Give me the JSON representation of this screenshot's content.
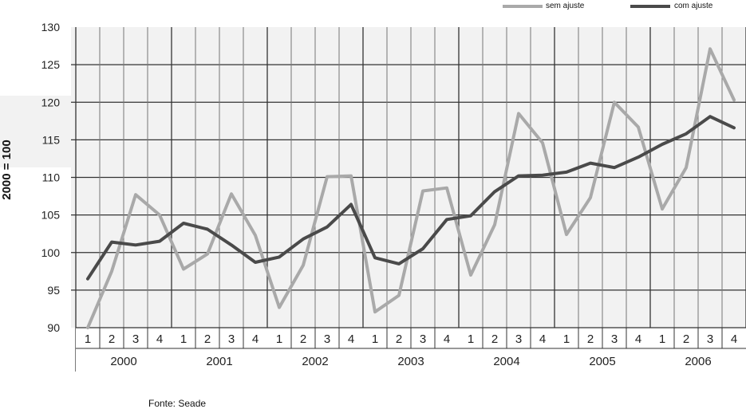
{
  "chart_data": {
    "type": "line",
    "title": "",
    "xlabel": "",
    "ylabel": "2000 = 100",
    "ylim": [
      90,
      130
    ],
    "yticks": [
      90,
      95,
      100,
      105,
      110,
      115,
      120,
      125,
      130
    ],
    "quarters": [
      "1",
      "2",
      "3",
      "4",
      "1",
      "2",
      "3",
      "4",
      "1",
      "2",
      "3",
      "4",
      "1",
      "2",
      "3",
      "4",
      "1",
      "2",
      "3",
      "4",
      "1",
      "2",
      "3",
      "4",
      "1",
      "2",
      "3",
      "4"
    ],
    "years": [
      "2000",
      "2001",
      "2002",
      "2003",
      "2004",
      "2005",
      "2006"
    ],
    "grid": true,
    "legend_position": "top-right",
    "series": [
      {
        "name": "sem ajuste",
        "color": "#a9a9a9",
        "values": [
          90.0,
          97.5,
          107.7,
          105.0,
          97.8,
          99.8,
          107.8,
          102.3,
          92.7,
          98.3,
          110.1,
          110.2,
          92.1,
          94.3,
          108.2,
          108.6,
          97.0,
          103.7,
          118.5,
          114.6,
          102.4,
          107.3,
          120.0,
          116.7,
          105.8,
          111.3,
          127.1,
          120.3
        ]
      },
      {
        "name": "com ajuste",
        "color": "#4a4a4a",
        "values": [
          96.5,
          101.4,
          101.0,
          101.5,
          103.9,
          103.1,
          101.0,
          98.7,
          99.4,
          101.8,
          103.4,
          106.4,
          99.3,
          98.5,
          100.5,
          104.4,
          104.9,
          108.1,
          110.2,
          110.3,
          110.7,
          111.9,
          111.3,
          112.7,
          114.4,
          115.8,
          118.1,
          116.6
        ]
      }
    ]
  },
  "source": "Fonte: Seade"
}
